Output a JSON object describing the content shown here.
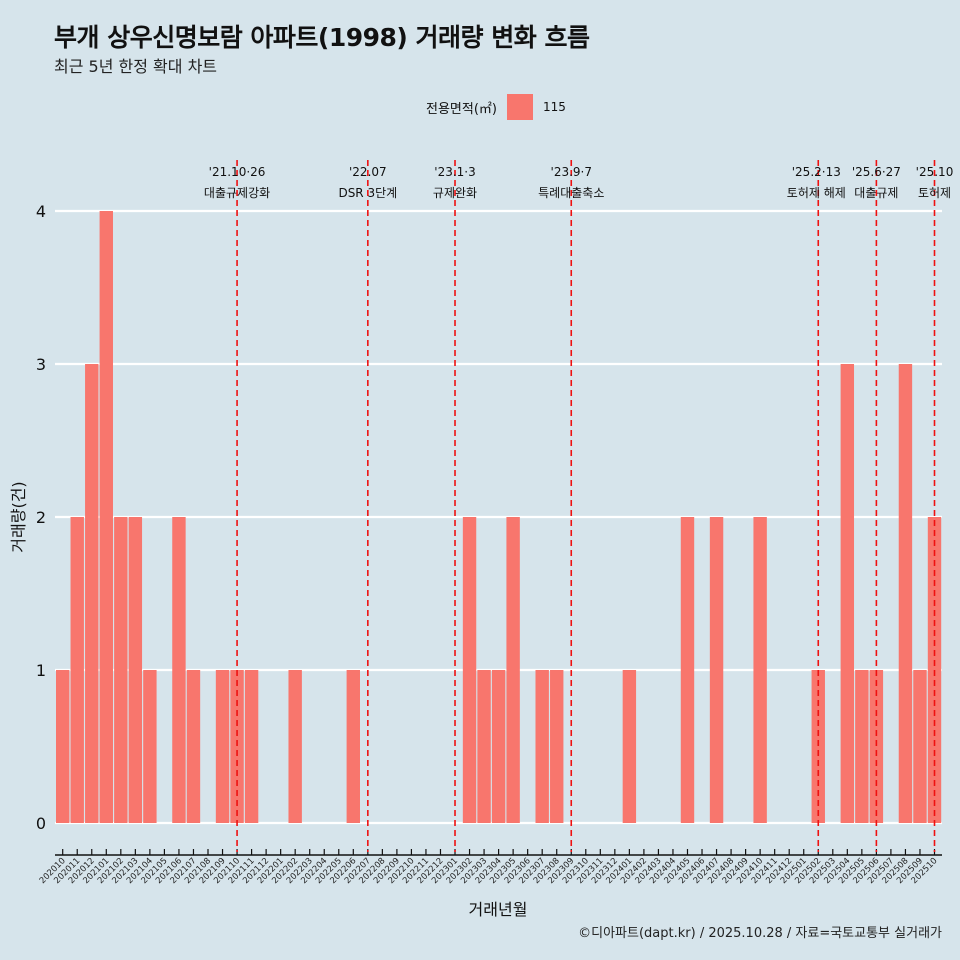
{
  "header": {
    "title": "부개 상우신명보람 아파트(1998) 거래량 변화 흐름",
    "subtitle": "최근 5년 한정 확대 차트"
  },
  "legend": {
    "title": "전용면적(㎡)",
    "entries": [
      {
        "label": "115",
        "color": "#f8766d"
      }
    ]
  },
  "caption": "©디아파트(dapt.kr) / 2025.10.28 / 자료=국토교통부 실거래가",
  "chart_data": {
    "type": "bar",
    "title": "부개 상우신명보람 아파트(1998) 거래량 변화 흐름",
    "xlabel": "거래년월",
    "ylabel": "거래량(건)",
    "ylim": [
      0,
      4
    ],
    "yticks": [
      0,
      1,
      2,
      3,
      4
    ],
    "grid": true,
    "legend_position": "top",
    "categories": [
      "202010",
      "202011",
      "202012",
      "202101",
      "202102",
      "202103",
      "202104",
      "202105",
      "202106",
      "202107",
      "202108",
      "202109",
      "202110",
      "202111",
      "202112",
      "202201",
      "202202",
      "202203",
      "202204",
      "202205",
      "202206",
      "202207",
      "202208",
      "202209",
      "202210",
      "202211",
      "202212",
      "202301",
      "202302",
      "202303",
      "202304",
      "202305",
      "202306",
      "202307",
      "202308",
      "202309",
      "202310",
      "202311",
      "202312",
      "202401",
      "202402",
      "202403",
      "202404",
      "202405",
      "202406",
      "202407",
      "202408",
      "202409",
      "202410",
      "202411",
      "202412",
      "202501",
      "202502",
      "202503",
      "202504",
      "202505",
      "202506",
      "202507",
      "202508",
      "202509",
      "202510"
    ],
    "series": [
      {
        "name": "115",
        "color": "#f8766d",
        "values": [
          1,
          2,
          3,
          4,
          2,
          2,
          1,
          0,
          2,
          1,
          0,
          1,
          1,
          1,
          0,
          0,
          1,
          0,
          0,
          0,
          1,
          0,
          0,
          0,
          0,
          0,
          0,
          0,
          2,
          1,
          1,
          2,
          0,
          1,
          1,
          0,
          0,
          0,
          0,
          1,
          0,
          0,
          0,
          2,
          0,
          2,
          0,
          0,
          2,
          0,
          0,
          0,
          1,
          0,
          3,
          1,
          1,
          0,
          3,
          1,
          2
        ]
      }
    ],
    "annotations": [
      {
        "at": "202110",
        "date": "'21.10·26",
        "label": "대출규제강화"
      },
      {
        "at": "202207",
        "date": "'22.07",
        "label": "DSR 3단계"
      },
      {
        "at": "202301",
        "date": "'23.1·3",
        "label": "규제완화"
      },
      {
        "at": "202309",
        "date": "'23.9·7",
        "label": "특례대출축소"
      },
      {
        "at": "202502",
        "date": "'25.2·13",
        "label": "토허제 해제"
      },
      {
        "at": "202506",
        "date": "'25.6·27",
        "label": "대출규제"
      },
      {
        "at": "202510",
        "date": "'25.10",
        "label": "토허제"
      }
    ]
  }
}
